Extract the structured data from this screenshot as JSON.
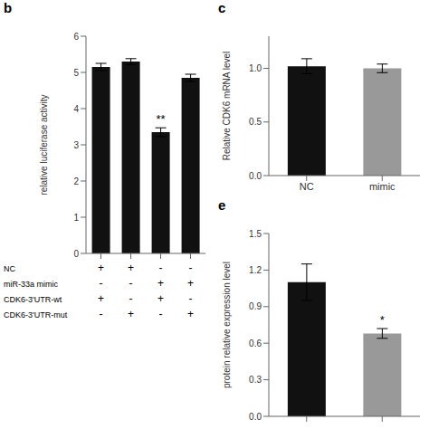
{
  "chart_data": [
    {
      "type": "bar",
      "title": "b",
      "ylabel": "relative luciferase activity",
      "categories": [
        null,
        null,
        null,
        null
      ],
      "values": [
        5.15,
        5.3,
        3.35,
        4.85
      ],
      "errors": [
        0.1,
        0.08,
        0.12,
        0.1
      ],
      "color": "#111111",
      "ylim": [
        0,
        6
      ],
      "yticks": [
        0,
        1,
        2,
        3,
        4,
        5,
        6
      ],
      "annotations": [
        {
          "text": "**",
          "category_index": 2
        }
      ],
      "table": {
        "rows": [
          "NC",
          "miR-33a mimic",
          "CDK6-3'UTR-wt",
          "CDK6-3'UTR-mut"
        ],
        "cells": [
          [
            "+",
            "+",
            "-",
            "-"
          ],
          [
            "-",
            "-",
            "+",
            "+"
          ],
          [
            "+",
            "-",
            "+",
            "-"
          ],
          [
            "-",
            "+",
            "-",
            "+"
          ]
        ]
      }
    },
    {
      "type": "bar",
      "title": "c",
      "ylabel": "Relative CDK6 mRNA level",
      "categories": [
        "NC",
        "mimic"
      ],
      "values": [
        1.02,
        1.0
      ],
      "errors": [
        0.07,
        0.04
      ],
      "colors": [
        "#111111",
        "#999999"
      ],
      "ylim": [
        0.0,
        1.3
      ],
      "yticks": [
        {
          "value": 0,
          "label": "0.0"
        },
        0.5,
        {
          "value": 1,
          "label": "1.0"
        }
      ]
    },
    {
      "type": "bar",
      "title": "e",
      "ylabel": "protein relative expression level",
      "categories": [
        null,
        null
      ],
      "values": [
        1.1,
        0.68
      ],
      "errors": [
        0.15,
        0.04
      ],
      "colors": [
        "#111111",
        "#999999"
      ],
      "ylim": [
        0.0,
        1.5
      ],
      "yticks": [
        {
          "value": 0,
          "label": "0.0"
        },
        0.3,
        0.6,
        0.9,
        1.2,
        1.5
      ],
      "annotations": [
        {
          "text": "*",
          "category_index": 1
        }
      ]
    }
  ]
}
